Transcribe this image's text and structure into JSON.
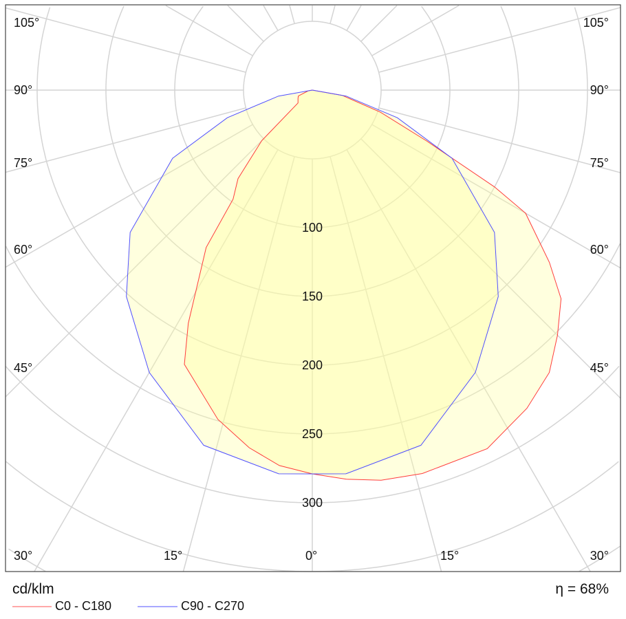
{
  "chart_data": {
    "type": "polar-line",
    "unit_label": "cd/klm",
    "efficiency_label": "η = 68%",
    "radial_ticks": [
      100,
      150,
      200,
      250,
      300
    ],
    "radial_tick_labels": [
      "100",
      "150",
      "200",
      "250",
      "300"
    ],
    "radial_grid_step": 50,
    "radial_range": [
      0,
      350
    ],
    "angle_grid_step_deg": 15,
    "angle_labels": {
      "left": [
        "105°",
        "90°",
        "75°",
        "60°",
        "45°",
        "30°",
        "15°"
      ],
      "bottom_center": "0°",
      "right": [
        "105°",
        "90°",
        "75°",
        "60°",
        "45°",
        "30°",
        "15°"
      ]
    },
    "series": [
      {
        "name": "C0 - C180",
        "color": "#ff3b3b",
        "points_deg_value": [
          [
            -90,
            0
          ],
          [
            -80,
            3
          ],
          [
            -67,
            11
          ],
          [
            -60,
            12
          ],
          [
            -48,
            14
          ],
          [
            -45,
            52
          ],
          [
            -40,
            84
          ],
          [
            -36,
            98
          ],
          [
            -34,
            138
          ],
          [
            -28,
            192
          ],
          [
            -25,
            220
          ],
          [
            -16,
            249
          ],
          [
            -10,
            264
          ],
          [
            -5,
            274
          ],
          [
            0,
            279
          ],
          [
            5,
            284
          ],
          [
            10,
            288
          ],
          [
            16,
            290
          ],
          [
            26,
            290
          ],
          [
            34,
            279
          ],
          [
            40,
            268
          ],
          [
            45,
            252
          ],
          [
            50,
            236
          ],
          [
            54,
            213
          ],
          [
            60,
            179
          ],
          [
            62,
            150
          ],
          [
            66,
            91
          ],
          [
            72,
            52
          ],
          [
            80,
            22
          ],
          [
            90,
            0
          ]
        ]
      },
      {
        "name": "C90 - C270",
        "color": "#5050ff",
        "points_deg_value": [
          [
            -90,
            0
          ],
          [
            -80,
            25
          ],
          [
            -72,
            65
          ],
          [
            -64,
            113
          ],
          [
            -52,
            168
          ],
          [
            -42,
            202
          ],
          [
            -30,
            237
          ],
          [
            -17,
            270
          ],
          [
            -5,
            280
          ],
          [
            0,
            279
          ],
          [
            5,
            280
          ],
          [
            17,
            270
          ],
          [
            30,
            237
          ],
          [
            42,
            202
          ],
          [
            52,
            168
          ],
          [
            64,
            113
          ],
          [
            72,
            65
          ],
          [
            80,
            25
          ],
          [
            90,
            0
          ]
        ]
      }
    ],
    "fill_color": "#ffffa0",
    "grid_color": "#d4d4d4"
  }
}
